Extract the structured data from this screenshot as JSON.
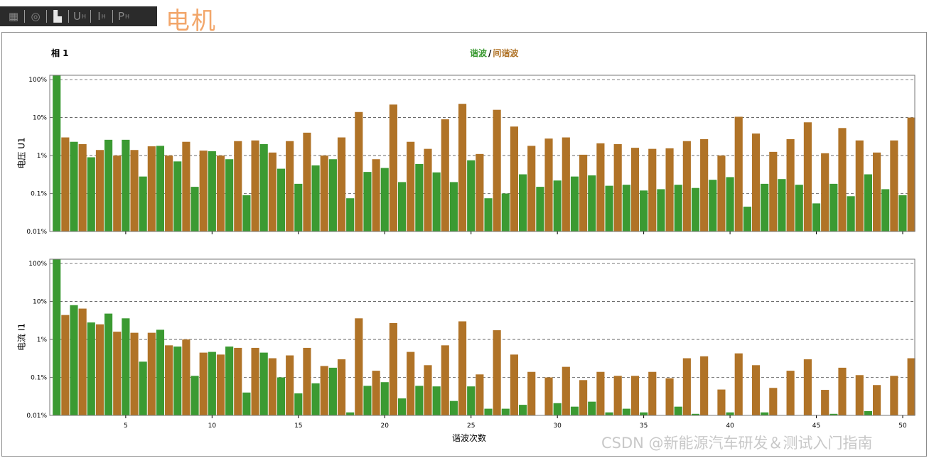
{
  "toolbar": {
    "items": [
      {
        "icon": "table-icon",
        "glyph": "▦"
      },
      {
        "icon": "phasor-icon",
        "glyph": "◎"
      },
      {
        "icon": "spectrum-icon",
        "glyph": "▙"
      },
      {
        "label": "U",
        "sub": "H"
      },
      {
        "label": "I",
        "sub": "H"
      },
      {
        "label": "P",
        "sub": "H"
      }
    ]
  },
  "brand": "电机",
  "phase_label": "相 1",
  "legend": {
    "harmonic": "谐波",
    "separator": "/",
    "interharmonic": "间谐波"
  },
  "colors": {
    "harmonic": "#3b9a32",
    "interharmonic": "#b07327",
    "grid": "#555555",
    "frame": "#777777"
  },
  "watermark": "CSDN @新能源汽车研发＆测试入门指南",
  "chart_data": [
    {
      "type": "bar",
      "scale": "log",
      "ylabel": "电压 U1",
      "xlabel": "",
      "y_ticks": [
        "100%",
        "10%",
        "1%",
        "0.1%",
        "0.01%"
      ],
      "y_tick_values": [
        100,
        10,
        1,
        0.1,
        0.01
      ],
      "ylim": [
        0.01,
        130
      ],
      "x_ticks": [
        5,
        10,
        15,
        20,
        25,
        30,
        35,
        40,
        45,
        50
      ],
      "xlim": [
        0.6,
        50.7
      ],
      "series": [
        {
          "name": "谐波",
          "x": [
            1,
            2,
            3,
            4,
            5,
            6,
            7,
            8,
            9,
            10,
            11,
            12,
            13,
            14,
            15,
            16,
            17,
            18,
            19,
            20,
            21,
            22,
            23,
            24,
            25,
            26,
            27,
            28,
            29,
            30,
            31,
            32,
            33,
            34,
            35,
            36,
            37,
            38,
            39,
            40,
            41,
            42,
            43,
            44,
            45,
            46,
            47,
            48,
            49,
            50
          ],
          "values": [
            130,
            2.3,
            0.9,
            2.6,
            2.6,
            0.28,
            1.8,
            0.7,
            0.15,
            1.3,
            0.8,
            0.09,
            2.0,
            0.45,
            0.18,
            0.55,
            0.8,
            0.075,
            0.37,
            0.47,
            0.2,
            0.6,
            0.36,
            0.2,
            0.75,
            0.075,
            0.1,
            0.32,
            0.15,
            0.22,
            0.28,
            0.3,
            0.16,
            0.17,
            0.12,
            0.13,
            0.17,
            0.14,
            0.23,
            0.27,
            0.045,
            0.18,
            0.24,
            0.17,
            0.055,
            0.18,
            0.085,
            0.32,
            0.13,
            0.09
          ]
        },
        {
          "name": "间谐波",
          "x": [
            1.5,
            2.5,
            3.5,
            4.5,
            5.5,
            6.5,
            7.5,
            8.5,
            9.5,
            10.5,
            11.5,
            12.5,
            13.5,
            14.5,
            15.5,
            16.5,
            17.5,
            18.5,
            19.5,
            20.5,
            21.5,
            22.5,
            23.5,
            24.5,
            25.5,
            26.5,
            27.5,
            28.5,
            29.5,
            30.5,
            31.5,
            32.5,
            33.5,
            34.5,
            35.5,
            36.5,
            37.5,
            38.5,
            39.5,
            40.5,
            41.5,
            42.5,
            43.5,
            44.5,
            45.5,
            46.5,
            47.5,
            48.5,
            49.5,
            50.5
          ],
          "values": [
            3.0,
            2.0,
            1.4,
            1.0,
            1.4,
            1.75,
            1.0,
            2.3,
            1.35,
            1.0,
            2.4,
            2.5,
            1.2,
            2.4,
            4.0,
            1.0,
            3.0,
            14,
            0.8,
            22,
            2.3,
            1.5,
            9.0,
            23,
            1.1,
            16,
            5.8,
            1.8,
            2.8,
            3.0,
            1.05,
            2.1,
            2.0,
            1.6,
            1.5,
            1.55,
            2.4,
            2.7,
            1.0,
            10.5,
            3.8,
            1.25,
            2.7,
            7.5,
            1.15,
            5.3,
            2.5,
            1.2,
            2.5,
            10.0
          ]
        }
      ]
    },
    {
      "type": "bar",
      "scale": "log",
      "ylabel": "电流 I1",
      "xlabel": "谐波次数",
      "y_ticks": [
        "100%",
        "10%",
        "1%",
        "0.1%",
        "0.01%"
      ],
      "y_tick_values": [
        100,
        10,
        1,
        0.1,
        0.01
      ],
      "ylim": [
        0.01,
        130
      ],
      "x_ticks": [
        5,
        10,
        15,
        20,
        25,
        30,
        35,
        40,
        45,
        50
      ],
      "xlim": [
        0.6,
        50.7
      ],
      "series": [
        {
          "name": "谐波",
          "x": [
            1,
            2,
            3,
            4,
            5,
            6,
            7,
            8,
            9,
            10,
            11,
            12,
            13,
            14,
            15,
            16,
            17,
            18,
            19,
            20,
            21,
            22,
            23,
            24,
            25,
            26,
            27,
            28,
            29,
            30,
            31,
            32,
            33,
            34,
            35,
            36,
            37,
            38,
            39,
            40,
            41,
            42,
            43,
            44,
            45,
            46,
            47,
            48,
            49,
            50
          ],
          "values": [
            130,
            8.0,
            2.8,
            4.8,
            3.6,
            0.26,
            1.8,
            0.65,
            0.11,
            0.47,
            0.65,
            0.04,
            0.45,
            0.1,
            0.038,
            0.07,
            0.18,
            0.012,
            0.06,
            0.075,
            0.028,
            0.06,
            0.058,
            0.024,
            0.058,
            0.015,
            0.015,
            0.019,
            0.01,
            0.021,
            0.017,
            0.023,
            0.012,
            0.015,
            0.012,
            0.01,
            0.017,
            0.011,
            0.01,
            0.012,
            0.01,
            0.012,
            0.01,
            0.01,
            0.01,
            0.011,
            0.01,
            0.013,
            0.01,
            0.01
          ]
        },
        {
          "name": "间谐波",
          "x": [
            1.5,
            2.5,
            3.5,
            4.5,
            5.5,
            6.5,
            7.5,
            8.5,
            9.5,
            10.5,
            11.5,
            12.5,
            13.5,
            14.5,
            15.5,
            16.5,
            17.5,
            18.5,
            19.5,
            20.5,
            21.5,
            22.5,
            23.5,
            24.5,
            25.5,
            26.5,
            27.5,
            28.5,
            29.5,
            30.5,
            31.5,
            32.5,
            33.5,
            34.5,
            35.5,
            36.5,
            37.5,
            38.5,
            39.5,
            40.5,
            41.5,
            42.5,
            43.5,
            44.5,
            45.5,
            46.5,
            47.5,
            48.5,
            49.5,
            50.5
          ],
          "values": [
            4.4,
            6.5,
            2.5,
            1.6,
            1.5,
            1.5,
            0.7,
            1.0,
            0.45,
            0.4,
            0.6,
            0.6,
            0.32,
            0.38,
            0.6,
            0.2,
            0.3,
            3.6,
            0.15,
            2.7,
            0.47,
            0.21,
            0.7,
            3.0,
            0.12,
            1.75,
            0.4,
            0.14,
            0.1,
            0.19,
            0.085,
            0.14,
            0.11,
            0.11,
            0.14,
            0.095,
            0.32,
            0.36,
            0.048,
            0.43,
            0.21,
            0.053,
            0.15,
            0.3,
            0.047,
            0.18,
            0.115,
            0.063,
            0.11,
            0.32
          ]
        }
      ]
    }
  ]
}
